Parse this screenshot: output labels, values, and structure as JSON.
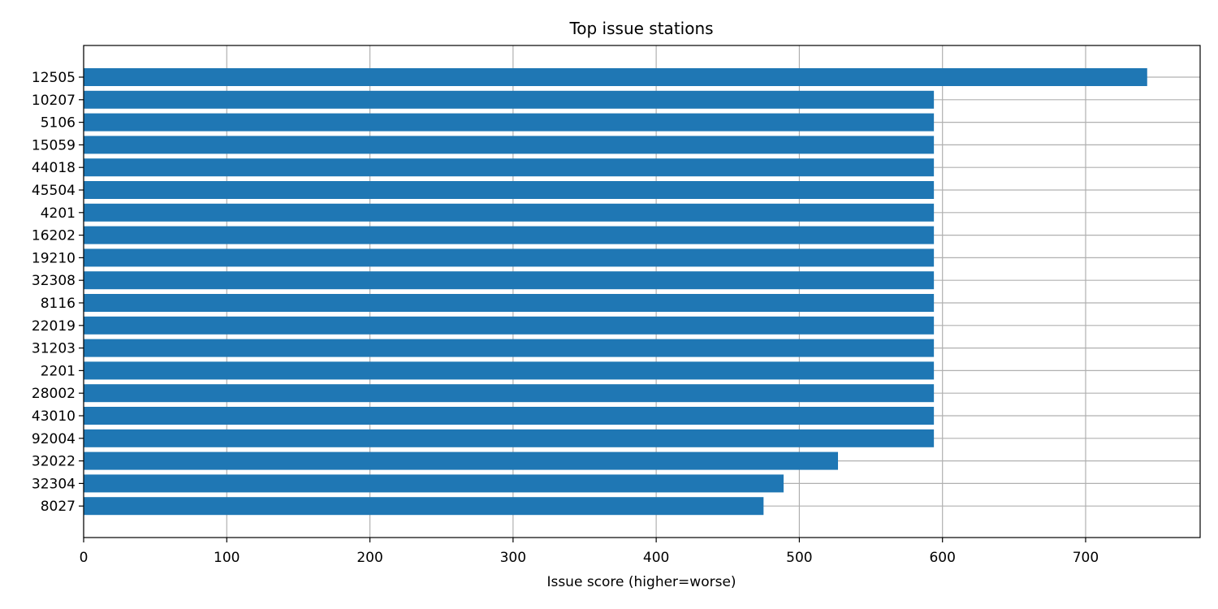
{
  "chart_data": {
    "type": "bar",
    "orientation": "horizontal",
    "title": "Top issue stations",
    "xlabel": "Issue score (higher=worse)",
    "ylabel": "",
    "categories": [
      "12505",
      "10207",
      "5106",
      "15059",
      "44018",
      "45504",
      "4201",
      "16202",
      "19210",
      "32308",
      "8116",
      "22019",
      "31203",
      "2201",
      "28002",
      "43010",
      "92004",
      "32022",
      "32304",
      "8027"
    ],
    "values": [
      743,
      594,
      594,
      594,
      594,
      594,
      594,
      594,
      594,
      594,
      594,
      594,
      594,
      594,
      594,
      594,
      594,
      527,
      489,
      475
    ],
    "xlim": [
      0,
      780
    ],
    "xticks": [
      0,
      100,
      200,
      300,
      400,
      500,
      600,
      700
    ],
    "grid": true,
    "color": "#1f77b4"
  }
}
